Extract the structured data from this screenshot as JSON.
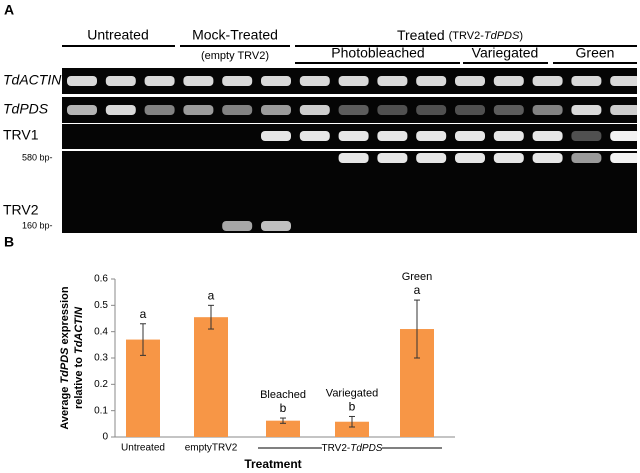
{
  "panel_a": {
    "label": "A",
    "groups": [
      "Untreated",
      "Mock-Treated"
    ],
    "mock_note": "(empty TRV2)",
    "treated": [
      "Treated ",
      "(TRV2-",
      "TdPDS",
      ")"
    ],
    "subgroups": [
      "Photobleached",
      "Variegated",
      "Green"
    ],
    "rows": [
      "TdACTIN",
      "TdPDS",
      "TRV1",
      "TRV2"
    ],
    "markers": [
      "580 bp-",
      "160 bp-"
    ]
  },
  "chart_data": {
    "type": "bar",
    "panel_label": "B",
    "categories": [
      "Untreated",
      "emptyTRV2",
      null,
      null,
      null
    ],
    "values": [
      0.37,
      0.455,
      0.062,
      0.058,
      0.41
    ],
    "errors": [
      0.06,
      0.045,
      0.01,
      0.02,
      0.11
    ],
    "letters": [
      "a",
      "a",
      "b",
      "b",
      "a"
    ],
    "bar_notes": [
      null,
      null,
      "Bleached",
      "Variegated",
      "Green"
    ],
    "group_label": [
      "TRV2-",
      "TdPDS"
    ],
    "color": "#f79646",
    "ylim": [
      0,
      0.6
    ],
    "yticks": [
      0,
      0.1,
      0.2,
      0.3,
      0.4,
      0.5,
      0.6
    ],
    "ylabel": [
      "Average ",
      "TdPDS",
      " expression",
      "relative to ",
      "TdACTIN"
    ],
    "xlabel": "Treatment"
  }
}
